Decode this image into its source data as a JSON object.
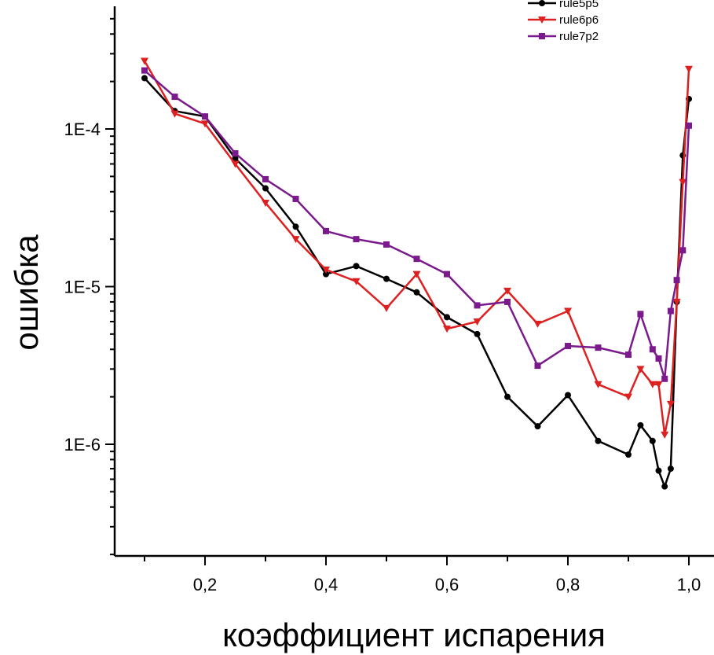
{
  "chart_data": {
    "type": "line",
    "title": "",
    "xlabel": "коэффициент испарения",
    "ylabel": "ошибка",
    "xlim": [
      0.05,
      1.04
    ],
    "ylim": [
      2e-07,
      0.0006
    ],
    "yscale": "log",
    "grid": false,
    "legend_position": "top-right",
    "x_ticks": [
      {
        "value": 0.2,
        "label": "0,2"
      },
      {
        "value": 0.4,
        "label": "0,4"
      },
      {
        "value": 0.6,
        "label": "0,6"
      },
      {
        "value": 0.8,
        "label": "0,8"
      },
      {
        "value": 1.0,
        "label": "1,0"
      }
    ],
    "y_ticks": [
      {
        "value": 0.0001,
        "label": "1E-4"
      },
      {
        "value": 1e-05,
        "label": "1E-5"
      },
      {
        "value": 1e-06,
        "label": "1E-6"
      }
    ],
    "series": [
      {
        "name": "rule5p5",
        "color": "#000000",
        "marker": "circle",
        "x": [
          0.1,
          0.15,
          0.2,
          0.25,
          0.3,
          0.35,
          0.4,
          0.45,
          0.5,
          0.55,
          0.6,
          0.65,
          0.7,
          0.75,
          0.8,
          0.85,
          0.9,
          0.92,
          0.94,
          0.95,
          0.96,
          0.97,
          0.98,
          0.99,
          1.0
        ],
        "values": [
          0.00021,
          0.00013,
          0.00012,
          6.5e-05,
          4.2e-05,
          2.4e-05,
          1.2e-05,
          1.35e-05,
          1.12e-05,
          9.2e-06,
          6.4e-06,
          5e-06,
          2e-06,
          1.3e-06,
          2.05e-06,
          1.05e-06,
          8.6e-07,
          1.32e-06,
          1.05e-06,
          6.8e-07,
          5.4e-07,
          7e-07,
          8e-06,
          6.8e-05,
          0.000155
        ]
      },
      {
        "name": "rule6p6",
        "color": "#dd2020",
        "marker": "triangle-down",
        "x": [
          0.1,
          0.15,
          0.2,
          0.25,
          0.3,
          0.35,
          0.4,
          0.45,
          0.5,
          0.55,
          0.6,
          0.65,
          0.7,
          0.75,
          0.8,
          0.85,
          0.9,
          0.92,
          0.94,
          0.95,
          0.96,
          0.97,
          0.98,
          0.99,
          1.0
        ],
        "values": [
          0.00027,
          0.000125,
          0.000108,
          6e-05,
          3.4e-05,
          2e-05,
          1.28e-05,
          1.08e-05,
          7.3e-06,
          1.2e-05,
          5.4e-06,
          6e-06,
          9.4e-06,
          5.8e-06,
          7e-06,
          2.4e-06,
          2e-06,
          3e-06,
          2.4e-06,
          2.4e-06,
          1.15e-06,
          1.8e-06,
          8e-06,
          4.6e-05,
          0.00024
        ]
      },
      {
        "name": "rule7p2",
        "color": "#7a1a8c",
        "marker": "square",
        "x": [
          0.1,
          0.15,
          0.2,
          0.25,
          0.3,
          0.35,
          0.4,
          0.45,
          0.5,
          0.55,
          0.6,
          0.65,
          0.7,
          0.75,
          0.8,
          0.85,
          0.9,
          0.92,
          0.94,
          0.95,
          0.96,
          0.97,
          0.98,
          0.99,
          1.0
        ],
        "values": [
          0.000235,
          0.00016,
          0.00012,
          7e-05,
          4.8e-05,
          3.6e-05,
          2.25e-05,
          2e-05,
          1.85e-05,
          1.5e-05,
          1.2e-05,
          7.6e-06,
          8e-06,
          3.15e-06,
          4.2e-06,
          4.1e-06,
          3.7e-06,
          6.7e-06,
          4e-06,
          3.5e-06,
          2.6e-06,
          7e-06,
          1.1e-05,
          1.7e-05,
          0.000105
        ]
      }
    ]
  }
}
